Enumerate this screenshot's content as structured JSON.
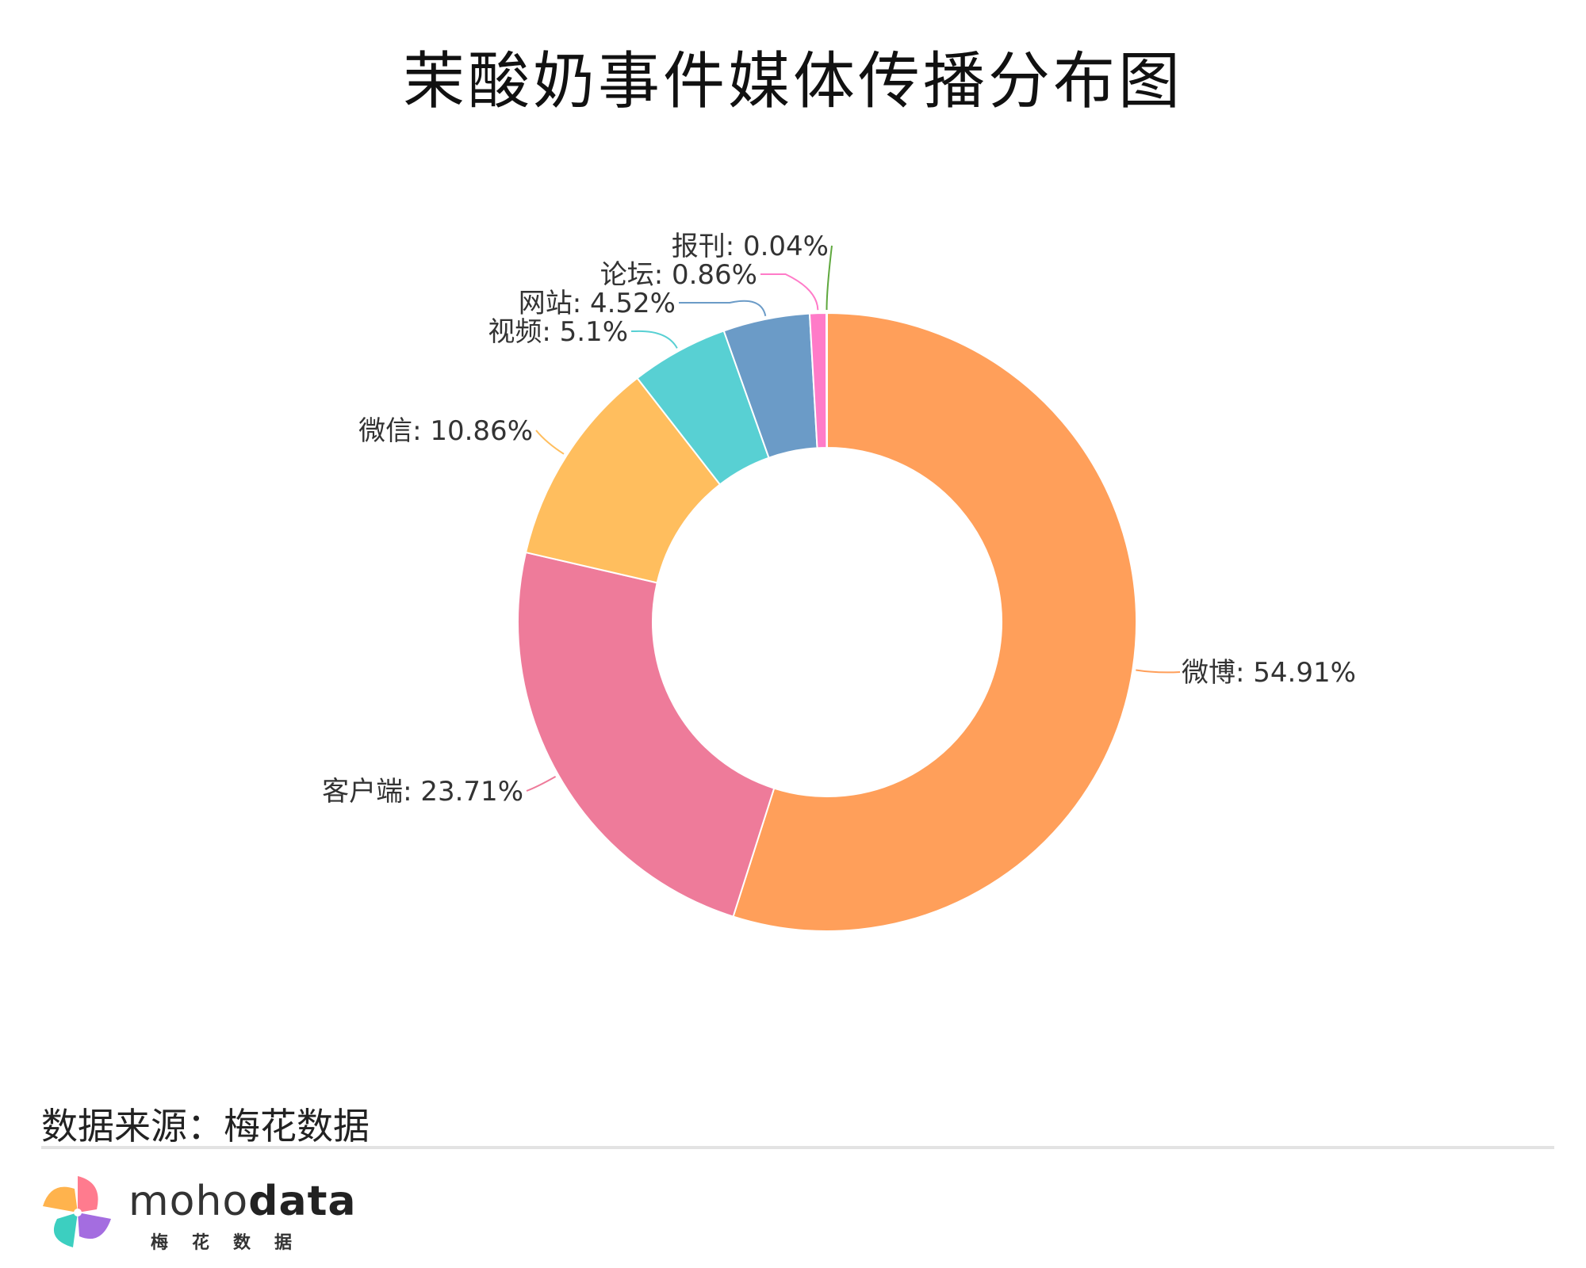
{
  "title": "茉酸奶事件媒体传播分布图",
  "source": "数据来源：梅花数据",
  "brand": {
    "name_a": "moho",
    "name_b": "data"
  },
  "chart_data": {
    "type": "pie",
    "donut": true,
    "title": "茉酸奶事件媒体传播分布图",
    "label_format": "{name}: {value}%",
    "slices": [
      {
        "name": "微博",
        "value": 54.91,
        "color": "#FF9F5A"
      },
      {
        "name": "客户端",
        "value": 23.71,
        "color": "#EE7B9A"
      },
      {
        "name": "微信",
        "value": 10.86,
        "color": "#FFBE5E"
      },
      {
        "name": "视频",
        "value": 5.1,
        "color": "#58D0D3"
      },
      {
        "name": "网站",
        "value": 4.52,
        "color": "#6B9BC7"
      },
      {
        "name": "论坛",
        "value": 0.86,
        "color": "#FF7BC8"
      },
      {
        "name": "报刊",
        "value": 0.04,
        "color": "#5FA83E"
      }
    ]
  }
}
